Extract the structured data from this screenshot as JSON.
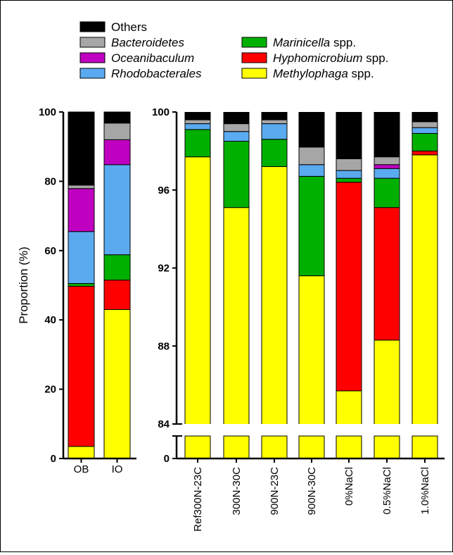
{
  "legend": {
    "items": [
      {
        "label": "Others",
        "italic_part": "",
        "suffix": "",
        "color": "#000000"
      },
      {
        "label": "",
        "italic_part": "Bacteroidetes",
        "suffix": "",
        "color": "#a6a6a6"
      },
      {
        "label": "",
        "italic_part": "Oceanibaculum",
        "suffix": "",
        "color": "#c000c0"
      },
      {
        "label": "",
        "italic_part": "Rhodobacterales",
        "suffix": "",
        "color": "#5aaaf0"
      },
      {
        "label": "",
        "italic_part": "Marinicella",
        "suffix": " spp.",
        "color": "#00b000"
      },
      {
        "label": "",
        "italic_part": "Hyphomicrobium",
        "suffix": " spp.",
        "color": "#ff0000"
      },
      {
        "label": "",
        "italic_part": "Methylophaga",
        "suffix": " spp.",
        "color": "#ffff00"
      }
    ]
  },
  "chart_data": [
    {
      "type": "bar",
      "stacked": true,
      "ylabel": "Proportion (%)",
      "ylim": [
        0,
        100
      ],
      "yticks": [
        "0",
        "20",
        "40",
        "60",
        "80",
        "100"
      ],
      "categories": [
        "OB",
        "IO"
      ],
      "series": [
        {
          "name": "Methylophaga spp.",
          "color": "#ffff00",
          "values": [
            3.5,
            43.0
          ]
        },
        {
          "name": "Hyphomicrobium spp.",
          "color": "#ff0000",
          "values": [
            46.2,
            8.5
          ]
        },
        {
          "name": "Marinicella spp.",
          "color": "#00b000",
          "values": [
            0.8,
            7.3
          ]
        },
        {
          "name": "Rhodobacterales",
          "color": "#5aaaf0",
          "values": [
            15.0,
            26.0
          ]
        },
        {
          "name": "Oceanibaculum",
          "color": "#c000c0",
          "values": [
            12.4,
            7.2
          ]
        },
        {
          "name": "Bacteroidetes",
          "color": "#a6a6a6",
          "values": [
            1.0,
            4.8
          ]
        },
        {
          "name": "Others",
          "color": "#000000",
          "values": [
            21.1,
            3.2
          ]
        }
      ]
    },
    {
      "type": "bar",
      "stacked": true,
      "axis_break": true,
      "ylim": [
        84,
        100
      ],
      "yticks": [
        "84",
        "88",
        "92",
        "96",
        "100"
      ],
      "bottom_tick": "0",
      "categories": [
        "Ref300N-23C",
        "300N-30C",
        "900N-23C",
        "900N-30C",
        "0%NaCl",
        "0.5%NaCl",
        "1.0%NaCl"
      ],
      "series": [
        {
          "name": "Methylophaga spp.",
          "color": "#ffff00",
          "values": [
            97.7,
            95.1,
            97.2,
            91.6,
            85.7,
            88.3,
            97.8
          ]
        },
        {
          "name": "Hyphomicrobium spp.",
          "color": "#ff0000",
          "values": [
            0.0,
            0.0,
            0.0,
            0.0,
            10.7,
            6.8,
            0.2
          ]
        },
        {
          "name": "Marinicella spp.",
          "color": "#00b000",
          "values": [
            1.4,
            3.4,
            1.4,
            5.1,
            0.2,
            1.5,
            0.9
          ]
        },
        {
          "name": "Rhodobacterales",
          "color": "#5aaaf0",
          "values": [
            0.3,
            0.5,
            0.8,
            0.6,
            0.4,
            0.5,
            0.3
          ]
        },
        {
          "name": "Oceanibaculum",
          "color": "#c000c0",
          "values": [
            0.0,
            0.0,
            0.0,
            0.0,
            0.0,
            0.2,
            0.0
          ]
        },
        {
          "name": "Bacteroidetes",
          "color": "#a6a6a6",
          "values": [
            0.2,
            0.4,
            0.2,
            0.9,
            0.6,
            0.4,
            0.3
          ]
        },
        {
          "name": "Others",
          "color": "#000000",
          "values": [
            0.4,
            0.6,
            0.4,
            1.8,
            2.4,
            2.3,
            0.5
          ]
        }
      ]
    }
  ]
}
